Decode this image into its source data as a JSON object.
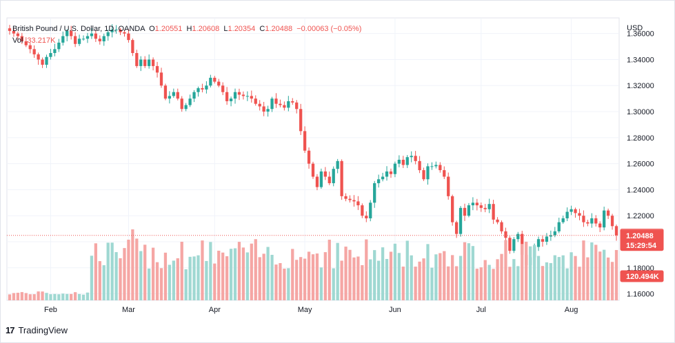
{
  "header": {
    "symbol": "British Pound / U.S. Dollar, 1D, OANDA",
    "o_label": "O",
    "o_value": "1.20551",
    "h_label": "H",
    "h_value": "1.20608",
    "l_label": "L",
    "l_value": "1.20354",
    "c_label": "C",
    "c_value": "1.20488",
    "change": "−0.00063 (−0.05%)",
    "vol_label": "Vol",
    "vol_value": "33.217K"
  },
  "currency_label": "USD",
  "badges": {
    "open_price": "1.20551",
    "last_price": "1.20488",
    "countdown": "15:29:54",
    "volume": "120.494K"
  },
  "branding": {
    "logo_mark": "17",
    "name": "TradingView"
  },
  "colors": {
    "up": "#26a69a",
    "down": "#ef5350",
    "vol_up": "#9fd8d2",
    "vol_down": "#f5a6a4",
    "grid": "#f0f3fa",
    "axis_text": "#131722"
  },
  "chart_data": {
    "type": "candlestick",
    "title": "British Pound / U.S. Dollar, 1D, OANDA",
    "y_axis": {
      "unit": "USD",
      "ylim": [
        1.155,
        1.372
      ],
      "ticks": [
        "1.36000",
        "1.34000",
        "1.32000",
        "1.30000",
        "1.28000",
        "1.26000",
        "1.24000",
        "1.22000",
        "1.20000",
        "1.18000",
        "1.16000"
      ]
    },
    "x_axis": {
      "ticks": [
        "Feb",
        "Mar",
        "Apr",
        "May",
        "Jun",
        "Jul",
        "Aug"
      ]
    },
    "grid": true,
    "ohlc_closes": [
      1.362,
      1.36,
      1.358,
      1.354,
      1.351,
      1.348,
      1.344,
      1.34,
      1.336,
      1.342,
      1.345,
      1.348,
      1.353,
      1.358,
      1.362,
      1.358,
      1.352,
      1.356,
      1.356,
      1.358,
      1.36,
      1.356,
      1.354,
      1.358,
      1.361,
      1.363,
      1.363,
      1.361,
      1.36,
      1.355,
      1.345,
      1.335,
      1.34,
      1.335,
      1.34,
      1.335,
      1.33,
      1.32,
      1.31,
      1.312,
      1.315,
      1.31,
      1.302,
      1.305,
      1.31,
      1.315,
      1.318,
      1.317,
      1.32,
      1.326,
      1.323,
      1.32,
      1.315,
      1.308,
      1.31,
      1.315,
      1.313,
      1.312,
      1.312,
      1.31,
      1.306,
      1.304,
      1.3,
      1.302,
      1.31,
      1.306,
      1.305,
      1.303,
      1.308,
      1.307,
      1.302,
      1.285,
      1.27,
      1.26,
      1.25,
      1.242,
      1.254,
      1.25,
      1.245,
      1.256,
      1.262,
      1.235,
      1.233,
      1.232,
      1.231,
      1.228,
      1.22,
      1.218,
      1.23,
      1.245,
      1.248,
      1.25,
      1.254,
      1.252,
      1.26,
      1.263,
      1.259,
      1.265,
      1.266,
      1.262,
      1.255,
      1.248,
      1.258,
      1.258,
      1.259,
      1.255,
      1.25,
      1.235,
      1.215,
      1.206,
      1.226,
      1.22,
      1.228,
      1.23,
      1.228,
      1.226,
      1.225,
      1.229,
      1.217,
      1.215,
      1.208,
      1.203,
      1.193,
      1.202,
      1.206,
      1.19,
      1.182,
      1.188,
      1.196,
      1.202,
      1.2,
      1.204,
      1.205,
      1.208,
      1.215,
      1.218,
      1.223,
      1.225,
      1.222,
      1.22,
      1.215,
      1.214,
      1.218,
      1.214,
      1.211,
      1.224,
      1.22,
      1.212,
      1.2049
    ],
    "volume_unit": "K",
    "last": {
      "open": 1.20551,
      "high": 1.20608,
      "low": 1.20354,
      "close": 1.20488,
      "change": -0.00063,
      "change_pct": -0.05,
      "volume_k": 33.217
    },
    "volume_ma_k": 120.494
  }
}
